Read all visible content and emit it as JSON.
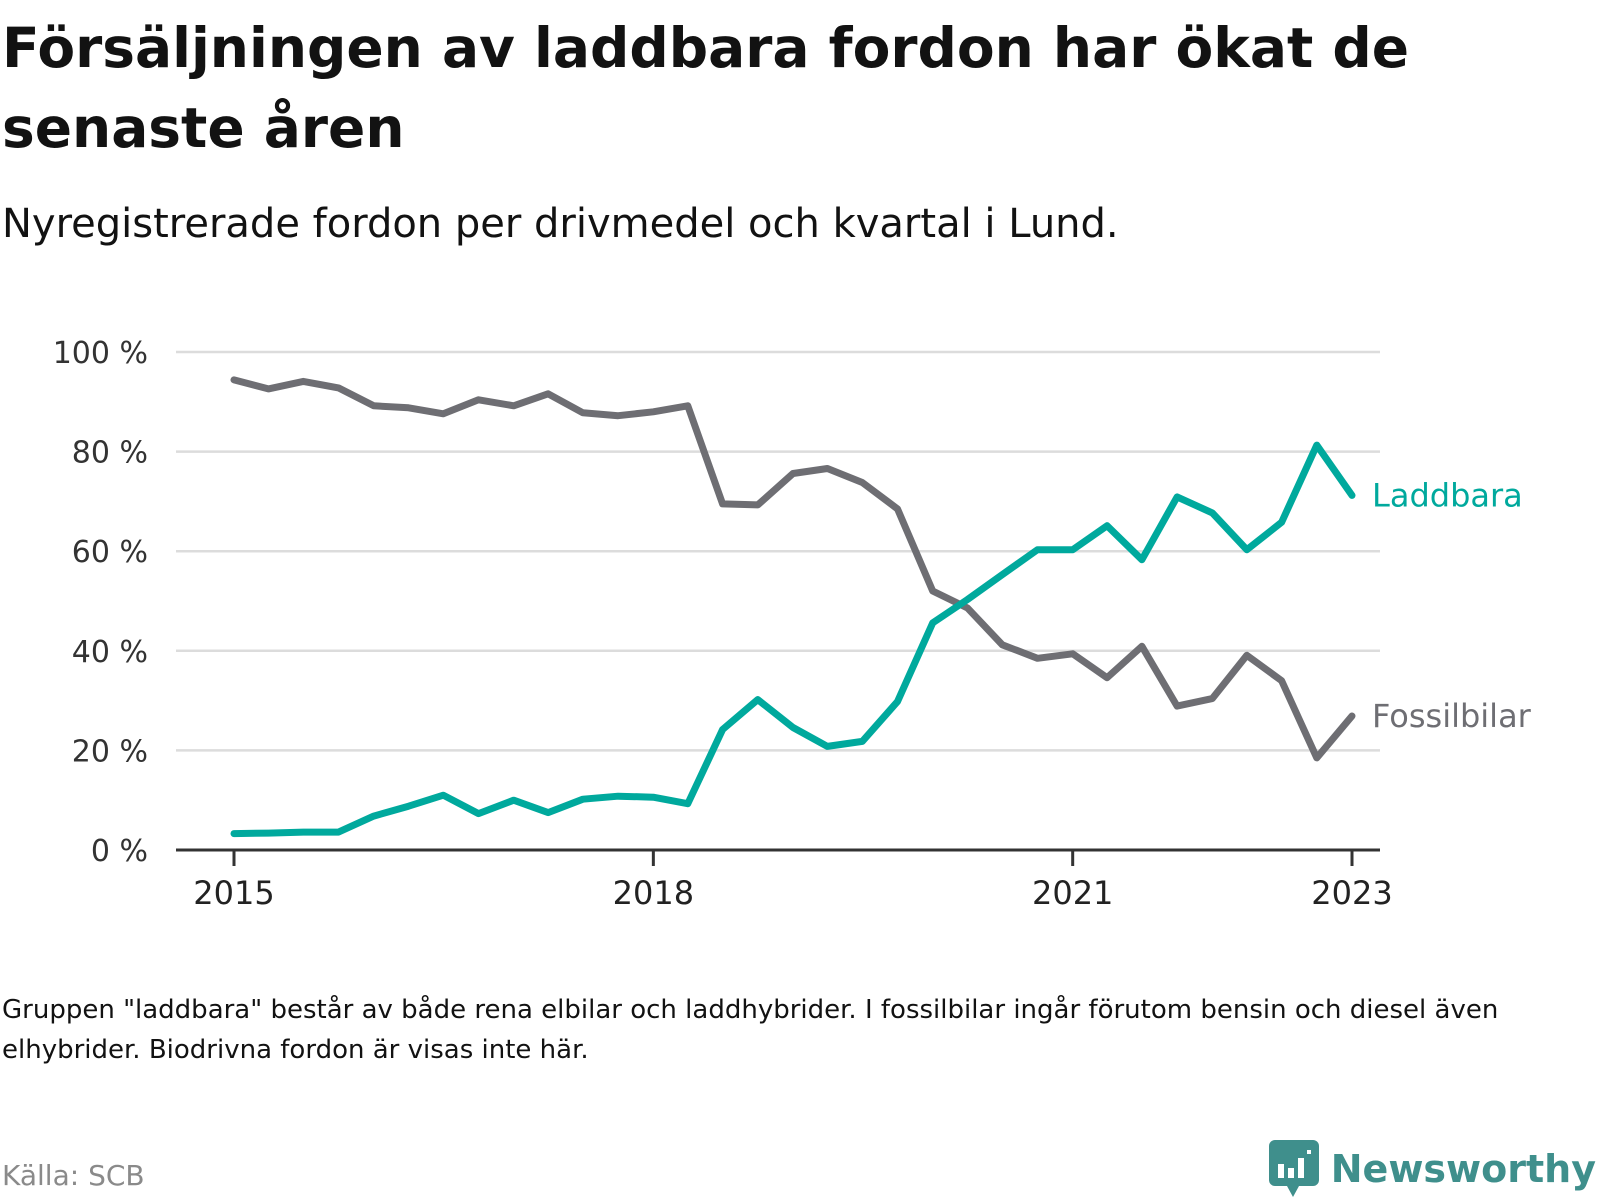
{
  "title": "Försäljningen av laddbara fordon har ökat de senaste åren",
  "subtitle": "Nyregistrerade fordon per drivmedel och kvartal i Lund.",
  "note": "Gruppen \"laddbara\" består av både rena elbilar och laddhybrider. I fossilbilar ingår förutom bensin och diesel även elhybrider. Biodrivna fordon är visas inte här.",
  "source": "Källa: SCB",
  "brand": "Newsworthy",
  "chart_data": {
    "type": "line",
    "x": [
      "2015-01-01",
      "2015-04-01",
      "2015-07-01",
      "2015-10-01",
      "2016-01-01",
      "2016-04-01",
      "2016-07-01",
      "2016-10-01",
      "2017-01-01",
      "2017-04-01",
      "2017-07-01",
      "2017-10-01",
      "2018-01-01",
      "2018-04-01",
      "2018-07-01",
      "2018-10-01",
      "2019-01-01",
      "2019-04-01",
      "2019-07-01",
      "2019-10-01",
      "2020-01-01",
      "2020-04-01",
      "2020-07-01",
      "2020-10-01",
      "2021-01-01",
      "2021-04-01",
      "2021-07-01",
      "2021-10-01",
      "2022-01-01",
      "2022-04-01",
      "2022-07-01",
      "2022-10-01",
      "2023-01-01"
    ],
    "series": [
      {
        "name": "Laddbara",
        "color": "#00a99d",
        "values": [
          3.3,
          3.4,
          3.6,
          3.6,
          6.8,
          8.8,
          11.0,
          7.3,
          10.0,
          7.5,
          10.2,
          10.8,
          10.6,
          9.3,
          24.2,
          30.2,
          24.6,
          20.8,
          21.8,
          29.8,
          45.6,
          50.3,
          55.3,
          60.3,
          60.3,
          65.1,
          58.3,
          70.9,
          67.7,
          60.3,
          65.8,
          81.3,
          71.2
        ]
      },
      {
        "name": "Fossilbilar",
        "color": "#6e6e73",
        "values": [
          94.4,
          92.6,
          94.1,
          92.8,
          89.2,
          88.8,
          87.6,
          90.4,
          89.2,
          91.6,
          87.8,
          87.2,
          88.0,
          89.2,
          69.5,
          69.3,
          75.6,
          76.6,
          73.8,
          68.5,
          52.0,
          48.6,
          41.2,
          38.5,
          39.4,
          34.6,
          40.9,
          28.9,
          30.4,
          39.1,
          34.0,
          18.5,
          26.9
        ]
      }
    ],
    "x_ticks": [
      "2015",
      "2018",
      "2021",
      "2023"
    ],
    "y_ticks": [
      "0 %",
      "20 %",
      "40 %",
      "60 %",
      "80 %",
      "100 %"
    ],
    "ylim": [
      0,
      100
    ],
    "grid": "horizontal",
    "legend": "inline-right"
  }
}
